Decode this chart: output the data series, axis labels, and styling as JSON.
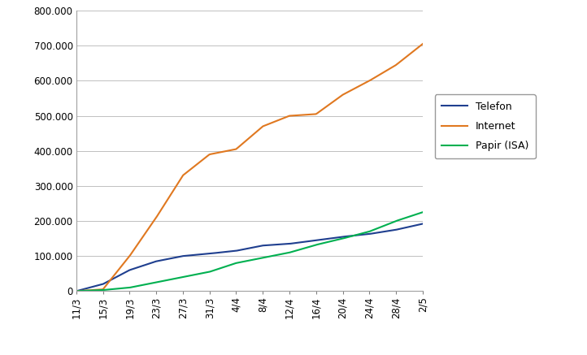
{
  "x_labels": [
    "11/3",
    "15/3",
    "19/3",
    "23/3",
    "27/3",
    "31/3",
    "4/4",
    "8/4",
    "12/4",
    "16/4",
    "20/4",
    "24/4",
    "28/4",
    "2/5"
  ],
  "telefon": [
    0,
    20000,
    60000,
    85000,
    100000,
    107000,
    115000,
    130000,
    135000,
    145000,
    155000,
    163000,
    175000,
    192000
  ],
  "internet": [
    0,
    5000,
    100000,
    210000,
    330000,
    390000,
    405000,
    470000,
    500000,
    505000,
    560000,
    600000,
    645000,
    705000
  ],
  "papir": [
    0,
    3000,
    10000,
    25000,
    40000,
    55000,
    80000,
    95000,
    110000,
    132000,
    150000,
    170000,
    200000,
    225000
  ],
  "telefon_color": "#1f3f8f",
  "internet_color": "#e07820",
  "papir_color": "#00b050",
  "legend_labels": [
    "Telefon",
    "Internet",
    "Papir (ISA)"
  ],
  "ylim": [
    0,
    800000
  ],
  "yticks": [
    0,
    100000,
    200000,
    300000,
    400000,
    500000,
    600000,
    700000,
    800000
  ],
  "ytick_labels": [
    "0",
    "100.000",
    "200.000",
    "300.000",
    "400.000",
    "500.000",
    "600.000",
    "700.000",
    "800.000"
  ],
  "background_color": "#ffffff",
  "grid_color": "#c0c0c0",
  "line_width": 1.5,
  "fig_border_color": "#808080"
}
